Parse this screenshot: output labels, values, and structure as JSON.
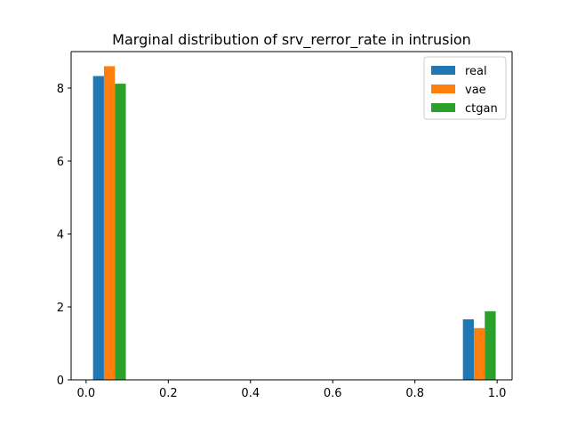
{
  "chart_data": {
    "type": "bar",
    "title": "Marginal distribution of srv_rerror_rate in intrusion",
    "xlabel": "",
    "ylabel": "",
    "xlim": [
      -0.0365,
      1.0365
    ],
    "ylim": [
      0,
      9.0
    ],
    "xticks": [
      0.0,
      0.2,
      0.4,
      0.6,
      0.8,
      1.0
    ],
    "xtick_labels": [
      "0.0",
      "0.2",
      "0.4",
      "0.6",
      "0.8",
      "1.0"
    ],
    "yticks": [
      0,
      2,
      4,
      6,
      8
    ],
    "ytick_labels": [
      "0",
      "2",
      "4",
      "6",
      "8"
    ],
    "grid": false,
    "legend_position": "top-right",
    "bar_width": 0.0266,
    "series": [
      {
        "name": "real",
        "color": "#1f77b4",
        "bars": [
          {
            "x_left": 0.0168,
            "height": 8.33
          },
          {
            "x_left": 0.9168,
            "height": 1.66
          }
        ]
      },
      {
        "name": "vae",
        "color": "#ff7f0e",
        "bars": [
          {
            "x_left": 0.0434,
            "height": 8.6
          },
          {
            "x_left": 0.9434,
            "height": 1.42
          }
        ]
      },
      {
        "name": "ctgan",
        "color": "#2ca02c",
        "bars": [
          {
            "x_left": 0.07,
            "height": 8.12
          },
          {
            "x_left": 0.97,
            "height": 1.88
          }
        ]
      }
    ]
  }
}
